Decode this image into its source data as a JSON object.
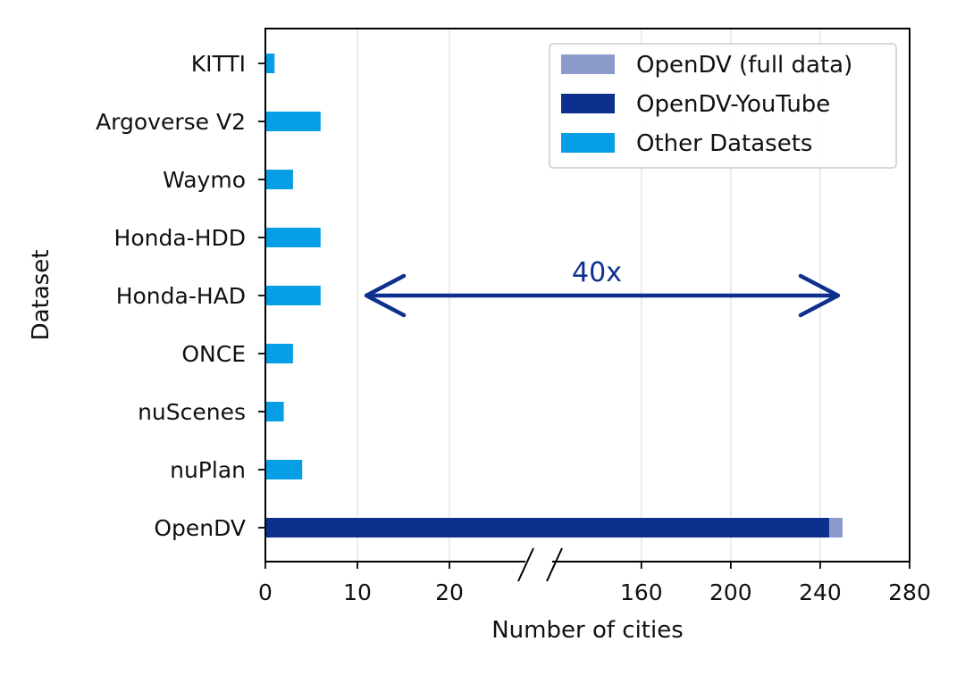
{
  "chart_data": {
    "type": "bar",
    "orientation": "horizontal",
    "xlabel": "Number of cities",
    "ylabel": "Dataset",
    "categories": [
      "KITTI",
      "Argoverse V2",
      "Waymo",
      "Honda-HDD",
      "Honda-HAD",
      "ONCE",
      "nuScenes",
      "nuPlan",
      "OpenDV"
    ],
    "x_axis": {
      "broken": true,
      "segments": [
        {
          "range": [
            0,
            25
          ],
          "ticks": [
            0,
            10,
            20
          ]
        },
        {
          "range": [
            130,
            280
          ],
          "ticks": [
            160,
            200,
            240,
            280
          ]
        }
      ],
      "tick_labels": [
        "0",
        "10",
        "20",
        "160",
        "200",
        "240",
        "280"
      ]
    },
    "grid": "vertical",
    "legend_position": "top-right",
    "series": [
      {
        "name": "OpenDV (full data)",
        "color": "#8c9bcc",
        "values": [
          null,
          null,
          null,
          null,
          null,
          null,
          null,
          null,
          250
        ]
      },
      {
        "name": "OpenDV-YouTube",
        "color": "#0d2f8d",
        "values": [
          null,
          null,
          null,
          null,
          null,
          null,
          null,
          null,
          244
        ]
      },
      {
        "name": "Other Datasets",
        "color": "#069fe6",
        "values": [
          1,
          6,
          3,
          6,
          6,
          3,
          2,
          4,
          null
        ]
      }
    ],
    "annotation": {
      "text": "40x",
      "from": 10,
      "to": 250,
      "category": "Honda-HAD",
      "color": "#0d2f8d"
    }
  }
}
